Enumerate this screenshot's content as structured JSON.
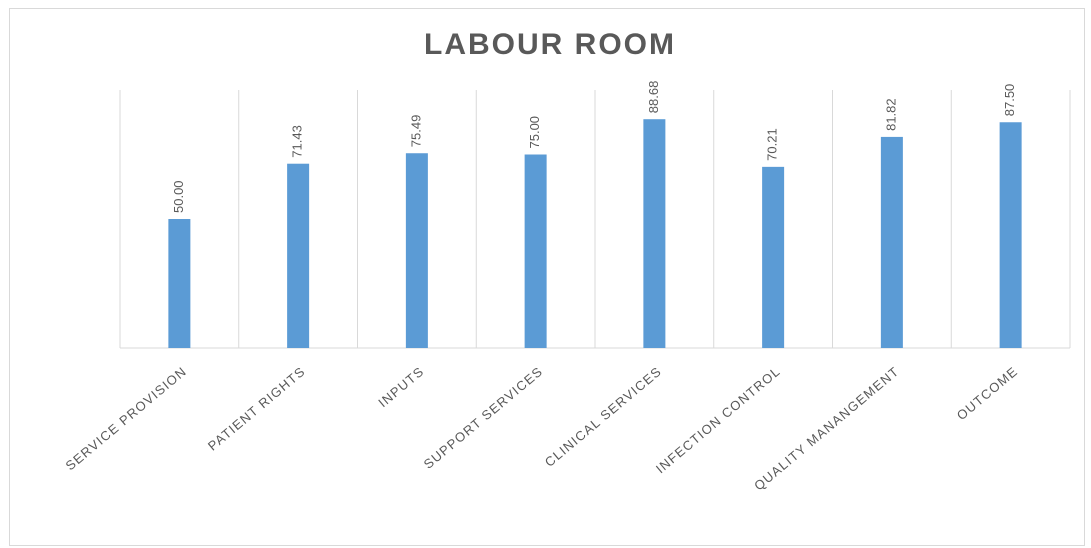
{
  "chart_data": {
    "type": "bar",
    "title": "LABOUR ROOM",
    "categories": [
      "SERVICE PROVISION",
      "PATIENT RIGHTS",
      "INPUTS",
      "SUPPORT SERVICES",
      "CLINICAL SERVICES",
      "INFECTION CONTROL",
      "QUALITY MANANGEMENT",
      "OUTCOME"
    ],
    "values": [
      50,
      71.43,
      75.49,
      75,
      88.68,
      70.21,
      81.82,
      87.5
    ],
    "value_labels": [
      "50.00",
      "71.43",
      "75.49",
      "75.00",
      "88.68",
      "70.21",
      "81.82",
      "87.50"
    ],
    "color": "#5b9bd5",
    "ylim": [
      0,
      100
    ]
  }
}
